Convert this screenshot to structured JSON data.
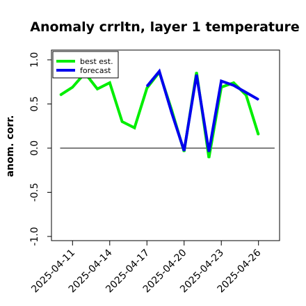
{
  "chart_data": {
    "type": "line",
    "title": "Anomaly crrltn, layer 1 temperature",
    "ylabel": "anom. corr.",
    "xlabel": "",
    "ylim": [
      -1.0,
      1.0
    ],
    "yticks": [
      {
        "value": -1.0,
        "label": "-1.0"
      },
      {
        "value": -0.5,
        "label": "-0.5"
      },
      {
        "value": 0.0,
        "label": "0.0"
      },
      {
        "value": 0.5,
        "label": "0.5"
      },
      {
        "value": 1.0,
        "label": "1.0"
      }
    ],
    "xticks": [
      {
        "value": 11,
        "label": "2025-04-11",
        "color": "#000000"
      },
      {
        "value": 14,
        "label": "2025-04-14",
        "color": "#000000"
      },
      {
        "value": 17,
        "label": "2025-04-17",
        "color": "#228B22"
      },
      {
        "value": 20,
        "label": "2025-04-20",
        "color": "#000000"
      },
      {
        "value": 23,
        "label": "2025-04-23",
        "color": "#000000"
      },
      {
        "value": 26,
        "label": "2025-04-26",
        "color": "#000000"
      }
    ],
    "xlim": [
      9.3,
      27.7
    ],
    "zero_line": {
      "y": 0.0,
      "from": 10,
      "to": 27.3,
      "color": "#555555"
    },
    "legend_position": "top-left",
    "series": [
      {
        "name": "best est.",
        "color": "#00ee00",
        "x": [
          10,
          11,
          12,
          13,
          14,
          15,
          16,
          17,
          18,
          19,
          20,
          21,
          22,
          23,
          24,
          25,
          26
        ],
        "y": [
          0.6,
          0.69,
          0.85,
          0.67,
          0.74,
          0.3,
          0.23,
          0.68,
          0.86,
          0.43,
          -0.04,
          0.86,
          -0.11,
          0.69,
          0.74,
          0.6,
          0.15
        ]
      },
      {
        "name": "forecast",
        "color": "#0000ee",
        "x": [
          17,
          18,
          19,
          20,
          21,
          22,
          23,
          24,
          25,
          26
        ],
        "y": [
          0.7,
          0.87,
          0.4,
          -0.03,
          0.83,
          -0.04,
          0.76,
          0.71,
          0.63,
          0.55
        ]
      }
    ]
  }
}
